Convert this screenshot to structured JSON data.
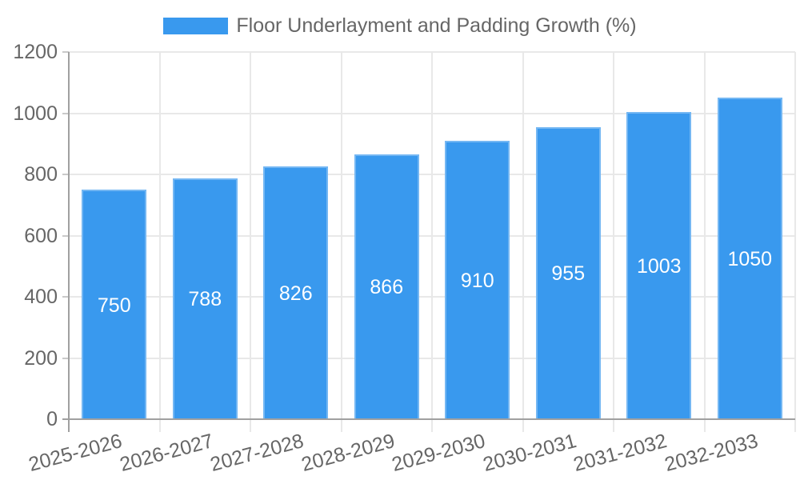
{
  "chart_data": {
    "type": "bar",
    "title": "Floor Underlayment and Padding Growth (%)",
    "legend": {
      "position": "top",
      "label": "Floor Underlayment and Padding Growth (%)"
    },
    "categories": [
      "2025-2026",
      "2026-2027",
      "2027-2028",
      "2028-2029",
      "2029-2030",
      "2030-2031",
      "2031-2032",
      "2032-2033"
    ],
    "values": [
      750,
      788,
      826,
      866,
      910,
      955,
      1003,
      1050
    ],
    "value_labels": [
      "750",
      "788",
      "826",
      "866",
      "910",
      "955",
      "1003",
      "1050"
    ],
    "xlabel": "",
    "ylabel": "",
    "ylim": [
      0,
      1200
    ],
    "yticks": [
      0,
      200,
      400,
      600,
      800,
      1000,
      1200
    ],
    "grid": true,
    "colors": {
      "bar": "#3999ee",
      "grid": "#e8e8e8",
      "axis": "#a0a0a0",
      "minor_tick": "#c9c9c9",
      "text": "#666666",
      "value_label": "#ffffff",
      "background": "#ffffff"
    }
  }
}
